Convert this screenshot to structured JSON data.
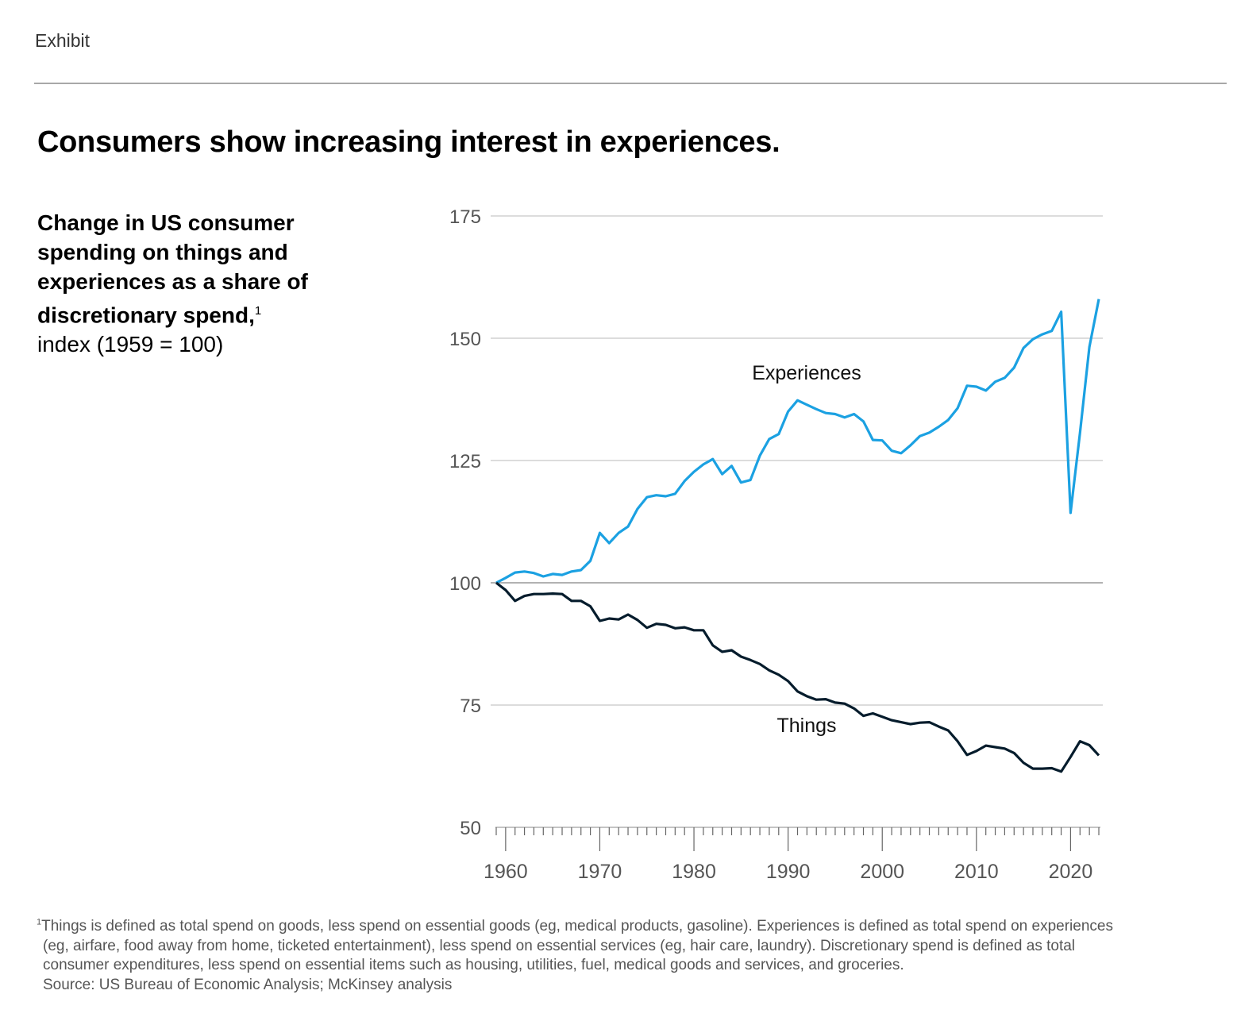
{
  "header": {
    "label": "Exhibit"
  },
  "title": "Consumers show increasing interest in experiences.",
  "subtitle": {
    "bold": "Change in US consumer spending on things and experiences as a share of discretionary spend,",
    "footnote_marker": "1",
    "unit": "index (1959 = 100)"
  },
  "chart_data": {
    "type": "line",
    "title": "",
    "xlabel": "",
    "ylabel": "",
    "xlim": [
      1959,
      2023
    ],
    "ylim": [
      50,
      175
    ],
    "yticks": [
      50,
      75,
      100,
      125,
      150,
      175
    ],
    "xticks": [
      1960,
      1970,
      1980,
      1990,
      2000,
      2010,
      2020
    ],
    "grid": true,
    "legend": "inline labels",
    "x": [
      1959,
      1960,
      1961,
      1962,
      1963,
      1964,
      1965,
      1966,
      1967,
      1968,
      1969,
      1970,
      1971,
      1972,
      1973,
      1974,
      1975,
      1976,
      1977,
      1978,
      1979,
      1980,
      1981,
      1982,
      1983,
      1984,
      1985,
      1986,
      1987,
      1988,
      1989,
      1990,
      1991,
      1992,
      1993,
      1994,
      1995,
      1996,
      1997,
      1998,
      1999,
      2000,
      2001,
      2002,
      2003,
      2004,
      2005,
      2006,
      2007,
      2008,
      2009,
      2010,
      2011,
      2012,
      2013,
      2014,
      2015,
      2016,
      2017,
      2018,
      2019,
      2020,
      2021,
      2022,
      2023
    ],
    "series": [
      {
        "name": "Experiences",
        "color": "#1ba1e2",
        "values": [
          100,
          101,
          102.1,
          102.3,
          102,
          101.3,
          101.8,
          101.6,
          102.3,
          102.6,
          104.5,
          110.2,
          108.1,
          110.2,
          111.5,
          115.1,
          117.5,
          117.9,
          117.7,
          118.2,
          120.8,
          122.7,
          124.2,
          125.3,
          122.2,
          123.9,
          120.5,
          121,
          126,
          129.4,
          130.4,
          135,
          137.3,
          136.4,
          135.5,
          134.7,
          134.5,
          133.8,
          134.5,
          133,
          129.2,
          129.1,
          127,
          126.5,
          128.1,
          130,
          130.7,
          131.9,
          133.3,
          135.7,
          140.3,
          140.1,
          139.3,
          141.1,
          141.9,
          144,
          148,
          149.8,
          150.8,
          151.5,
          155.4,
          114.3,
          130.7,
          148.2,
          158
        ]
      },
      {
        "name": "Things",
        "color": "#051c2c",
        "values": [
          100,
          98.5,
          96.3,
          97.3,
          97.7,
          97.7,
          97.8,
          97.7,
          96.3,
          96.3,
          95.2,
          92.2,
          92.7,
          92.5,
          93.5,
          92.4,
          90.8,
          91.6,
          91.4,
          90.7,
          90.9,
          90.3,
          90.3,
          87.2,
          85.9,
          86.2,
          84.9,
          84.2,
          83.4,
          82.1,
          81.2,
          79.9,
          77.8,
          76.8,
          76.1,
          76.2,
          75.5,
          75.3,
          74.3,
          72.8,
          73.3,
          72.6,
          71.9,
          71.5,
          71.1,
          71.4,
          71.5,
          70.6,
          69.8,
          67.6,
          64.8,
          65.6,
          66.7,
          66.4,
          66.1,
          65.2,
          63.2,
          62,
          62,
          62.1,
          61.4,
          64.4,
          67.6,
          66.8,
          64.7
        ]
      }
    ]
  },
  "footnote": {
    "marker": "1",
    "lines": [
      "Things is defined as total spend on goods, less spend on essential goods (eg, medical products, gasoline). Experiences is defined as total spend on experiences",
      "(eg, airfare, food away from home, ticketed entertainment), less spend on essential services (eg, hair care, laundry). Discretionary spend is defined as total",
      "consumer expenditures, less spend on essential items such as housing, utilities, fuel, medical goods and services, and groceries."
    ],
    "source": "Source: US Bureau of Economic Analysis; McKinsey analysis"
  }
}
